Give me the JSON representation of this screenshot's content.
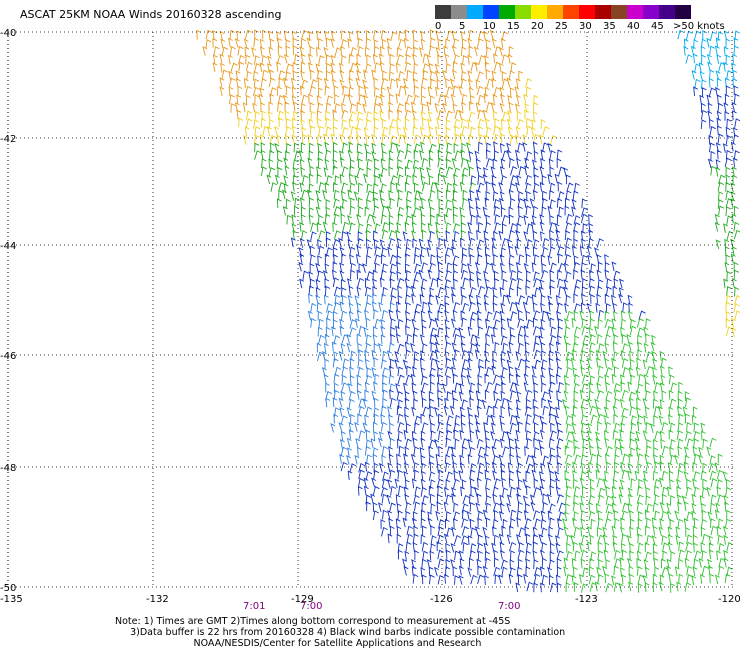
{
  "title": "ASCAT 25KM NOAA Winds 20160328 ascending",
  "colorbar": {
    "labels": [
      "0",
      "5",
      "10",
      "15",
      "20",
      "25",
      "30",
      "35",
      "40",
      "45",
      ">50 knots"
    ],
    "colors": [
      "#3c3c3c",
      "#8c8c8c",
      "#00aaff",
      "#0044ff",
      "#00aa00",
      "#88dd00",
      "#ffee00",
      "#ffaa00",
      "#ff4400",
      "#ff0000",
      "#aa0000",
      "#884422",
      "#cc00cc",
      "#8800cc",
      "#440088",
      "#220044"
    ]
  },
  "map": {
    "lat_labels": [
      "-40",
      "-42",
      "-44",
      "-46",
      "-48",
      "-50"
    ],
    "lon_labels": [
      "-135",
      "-132",
      "-129",
      "-126",
      "-123",
      "-120"
    ],
    "times": [
      "7:01",
      "7:00",
      "7:00"
    ],
    "grid_color": "#000000"
  },
  "notes": {
    "line1": "Note: 1) Times are GMT 2)Times along bottom correspond to measurement at -45S",
    "line2": "     3)Data buffer is 22 hrs from 20160328 4) Black wind barbs indicate possible contamination",
    "line3": "                          NOAA/NESDIS/Center for Satellite Applications and Research"
  }
}
